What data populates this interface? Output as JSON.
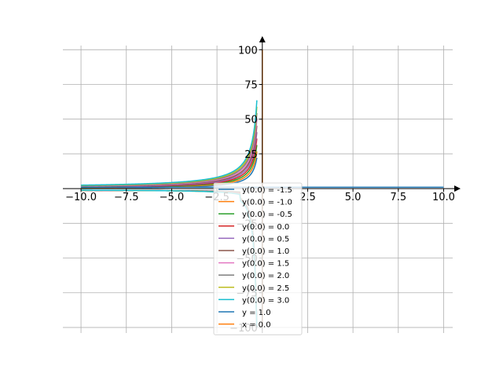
{
  "chart_data": {
    "type": "line",
    "title": "",
    "xlabel": "",
    "ylabel": "",
    "xlim": [
      -11.0,
      10.5
    ],
    "ylim": [
      -104,
      103
    ],
    "grid": true,
    "spines": "centered",
    "legend_location": "center",
    "x_ticks": [
      -10.0,
      -7.5,
      -5.0,
      -2.5,
      2.5,
      5.0,
      7.5,
      10.0
    ],
    "x_tick_labels": [
      "−10.0",
      "−7.5",
      "−5.0",
      "−2.5",
      "2.5",
      "5.0",
      "7.5",
      "10.0"
    ],
    "y_ticks": [
      100,
      75,
      50,
      25,
      -25,
      -50,
      -75,
      -100
    ],
    "y_tick_labels": [
      "100",
      "75",
      "50",
      "25",
      "−25",
      "−50",
      "−75",
      "−100"
    ],
    "series": [
      {
        "name": "y(0.0) = -1.5",
        "color": "#1f77b4",
        "c": -1.5,
        "x_branch": [
          -10.0,
          -0.3
        ]
      },
      {
        "name": "y(0.0) = -1.0",
        "color": "#ff7f0e",
        "c": -1.0,
        "x_branch": [
          -10.0,
          -0.3
        ]
      },
      {
        "name": "y(0.0) = -0.5",
        "color": "#2ca02c",
        "c": -0.5,
        "x_branch": [
          -10.0,
          -0.3
        ]
      },
      {
        "name": "y(0.0) = 0.0",
        "color": "#d62728",
        "c": 0.0,
        "x_branch": [
          -10.0,
          -0.3
        ]
      },
      {
        "name": "y(0.0) = 0.5",
        "color": "#9467bd",
        "c": 0.5,
        "x_branch": [
          -10.0,
          -0.3
        ]
      },
      {
        "name": "y(0.0) = 1.0",
        "color": "#8c564b",
        "c": 1.0,
        "x_branch": [
          -10.0,
          -0.3
        ]
      },
      {
        "name": "y(0.0) = 1.5",
        "color": "#e377c2",
        "c": 1.5,
        "x_branch": [
          -10.0,
          -0.3
        ]
      },
      {
        "name": "y(0.0) = 2.0",
        "color": "#7f7f7f",
        "c": 2.0,
        "x_branch": [
          -10.0,
          -0.3
        ]
      },
      {
        "name": "y(0.0) = 2.5",
        "color": "#bcbd22",
        "c": 2.5,
        "x_branch": [
          -10.0,
          -0.3
        ]
      },
      {
        "name": "y(0.0) = 3.0",
        "color": "#17becf",
        "c": 3.0,
        "x_branch": [
          -10.0,
          -0.3
        ]
      },
      {
        "name": "y = 1.0",
        "color": "#1f77b4",
        "kind": "hline",
        "y": 1.0,
        "x_range": [
          -10.0,
          10.0
        ]
      },
      {
        "name": "x = 0.0",
        "color": "#ff7f0e",
        "kind": "vline",
        "x": 0.0,
        "y_range": [
          -100,
          100
        ]
      }
    ]
  }
}
